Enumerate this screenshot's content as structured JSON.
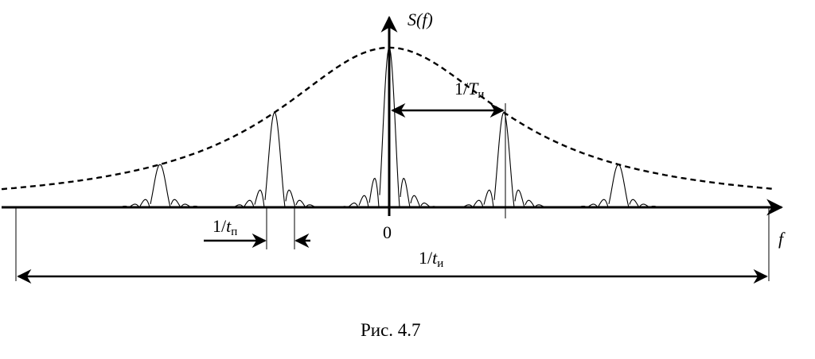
{
  "labels": {
    "y_axis": {
      "base": "S(f)"
    },
    "x_axis": "f",
    "origin": "0",
    "period_width": {
      "prefix": "1/",
      "var": "T",
      "sub": "и"
    },
    "pulse_spacing": {
      "prefix": "1/",
      "var": "t",
      "sub": "п"
    },
    "pulse_width": {
      "prefix": "1/",
      "var": "t",
      "sub": "и"
    }
  },
  "caption": "Рис. 4.7",
  "colors": {
    "ink": "#000000",
    "background": "#ffffff"
  }
}
